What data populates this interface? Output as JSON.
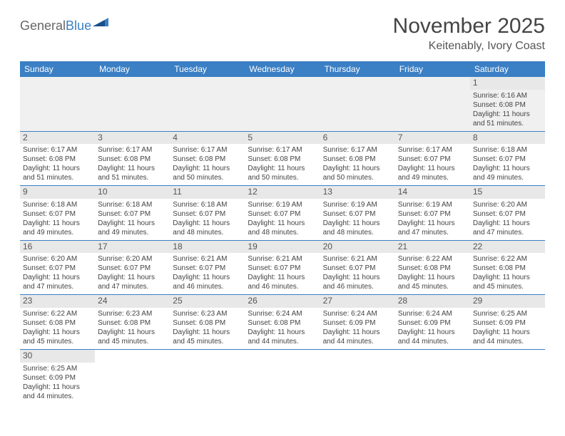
{
  "logo": {
    "textGeneral": "General",
    "textBlue": "Blue"
  },
  "titleBlock": {
    "title": "November 2025",
    "location": "Keitenably, Ivory Coast"
  },
  "weekdays": [
    "Sunday",
    "Monday",
    "Tuesday",
    "Wednesday",
    "Thursday",
    "Friday",
    "Saturday"
  ],
  "colors": {
    "headerBg": "#3b7fc4",
    "rowSeparator": "#3b7fc4",
    "dayNumBg": "#e8e8e8",
    "emptyBg": "#f0f0f0"
  },
  "weeks": [
    [
      null,
      null,
      null,
      null,
      null,
      null,
      {
        "num": "1",
        "sunrise": "Sunrise: 6:16 AM",
        "sunset": "Sunset: 6:08 PM",
        "daylight": "Daylight: 11 hours and 51 minutes."
      }
    ],
    [
      {
        "num": "2",
        "sunrise": "Sunrise: 6:17 AM",
        "sunset": "Sunset: 6:08 PM",
        "daylight": "Daylight: 11 hours and 51 minutes."
      },
      {
        "num": "3",
        "sunrise": "Sunrise: 6:17 AM",
        "sunset": "Sunset: 6:08 PM",
        "daylight": "Daylight: 11 hours and 51 minutes."
      },
      {
        "num": "4",
        "sunrise": "Sunrise: 6:17 AM",
        "sunset": "Sunset: 6:08 PM",
        "daylight": "Daylight: 11 hours and 50 minutes."
      },
      {
        "num": "5",
        "sunrise": "Sunrise: 6:17 AM",
        "sunset": "Sunset: 6:08 PM",
        "daylight": "Daylight: 11 hours and 50 minutes."
      },
      {
        "num": "6",
        "sunrise": "Sunrise: 6:17 AM",
        "sunset": "Sunset: 6:08 PM",
        "daylight": "Daylight: 11 hours and 50 minutes."
      },
      {
        "num": "7",
        "sunrise": "Sunrise: 6:17 AM",
        "sunset": "Sunset: 6:07 PM",
        "daylight": "Daylight: 11 hours and 49 minutes."
      },
      {
        "num": "8",
        "sunrise": "Sunrise: 6:18 AM",
        "sunset": "Sunset: 6:07 PM",
        "daylight": "Daylight: 11 hours and 49 minutes."
      }
    ],
    [
      {
        "num": "9",
        "sunrise": "Sunrise: 6:18 AM",
        "sunset": "Sunset: 6:07 PM",
        "daylight": "Daylight: 11 hours and 49 minutes."
      },
      {
        "num": "10",
        "sunrise": "Sunrise: 6:18 AM",
        "sunset": "Sunset: 6:07 PM",
        "daylight": "Daylight: 11 hours and 49 minutes."
      },
      {
        "num": "11",
        "sunrise": "Sunrise: 6:18 AM",
        "sunset": "Sunset: 6:07 PM",
        "daylight": "Daylight: 11 hours and 48 minutes."
      },
      {
        "num": "12",
        "sunrise": "Sunrise: 6:19 AM",
        "sunset": "Sunset: 6:07 PM",
        "daylight": "Daylight: 11 hours and 48 minutes."
      },
      {
        "num": "13",
        "sunrise": "Sunrise: 6:19 AM",
        "sunset": "Sunset: 6:07 PM",
        "daylight": "Daylight: 11 hours and 48 minutes."
      },
      {
        "num": "14",
        "sunrise": "Sunrise: 6:19 AM",
        "sunset": "Sunset: 6:07 PM",
        "daylight": "Daylight: 11 hours and 47 minutes."
      },
      {
        "num": "15",
        "sunrise": "Sunrise: 6:20 AM",
        "sunset": "Sunset: 6:07 PM",
        "daylight": "Daylight: 11 hours and 47 minutes."
      }
    ],
    [
      {
        "num": "16",
        "sunrise": "Sunrise: 6:20 AM",
        "sunset": "Sunset: 6:07 PM",
        "daylight": "Daylight: 11 hours and 47 minutes."
      },
      {
        "num": "17",
        "sunrise": "Sunrise: 6:20 AM",
        "sunset": "Sunset: 6:07 PM",
        "daylight": "Daylight: 11 hours and 47 minutes."
      },
      {
        "num": "18",
        "sunrise": "Sunrise: 6:21 AM",
        "sunset": "Sunset: 6:07 PM",
        "daylight": "Daylight: 11 hours and 46 minutes."
      },
      {
        "num": "19",
        "sunrise": "Sunrise: 6:21 AM",
        "sunset": "Sunset: 6:07 PM",
        "daylight": "Daylight: 11 hours and 46 minutes."
      },
      {
        "num": "20",
        "sunrise": "Sunrise: 6:21 AM",
        "sunset": "Sunset: 6:07 PM",
        "daylight": "Daylight: 11 hours and 46 minutes."
      },
      {
        "num": "21",
        "sunrise": "Sunrise: 6:22 AM",
        "sunset": "Sunset: 6:08 PM",
        "daylight": "Daylight: 11 hours and 45 minutes."
      },
      {
        "num": "22",
        "sunrise": "Sunrise: 6:22 AM",
        "sunset": "Sunset: 6:08 PM",
        "daylight": "Daylight: 11 hours and 45 minutes."
      }
    ],
    [
      {
        "num": "23",
        "sunrise": "Sunrise: 6:22 AM",
        "sunset": "Sunset: 6:08 PM",
        "daylight": "Daylight: 11 hours and 45 minutes."
      },
      {
        "num": "24",
        "sunrise": "Sunrise: 6:23 AM",
        "sunset": "Sunset: 6:08 PM",
        "daylight": "Daylight: 11 hours and 45 minutes."
      },
      {
        "num": "25",
        "sunrise": "Sunrise: 6:23 AM",
        "sunset": "Sunset: 6:08 PM",
        "daylight": "Daylight: 11 hours and 45 minutes."
      },
      {
        "num": "26",
        "sunrise": "Sunrise: 6:24 AM",
        "sunset": "Sunset: 6:08 PM",
        "daylight": "Daylight: 11 hours and 44 minutes."
      },
      {
        "num": "27",
        "sunrise": "Sunrise: 6:24 AM",
        "sunset": "Sunset: 6:09 PM",
        "daylight": "Daylight: 11 hours and 44 minutes."
      },
      {
        "num": "28",
        "sunrise": "Sunrise: 6:24 AM",
        "sunset": "Sunset: 6:09 PM",
        "daylight": "Daylight: 11 hours and 44 minutes."
      },
      {
        "num": "29",
        "sunrise": "Sunrise: 6:25 AM",
        "sunset": "Sunset: 6:09 PM",
        "daylight": "Daylight: 11 hours and 44 minutes."
      }
    ],
    [
      {
        "num": "30",
        "sunrise": "Sunrise: 6:25 AM",
        "sunset": "Sunset: 6:09 PM",
        "daylight": "Daylight: 11 hours and 44 minutes."
      },
      null,
      null,
      null,
      null,
      null,
      null
    ]
  ]
}
